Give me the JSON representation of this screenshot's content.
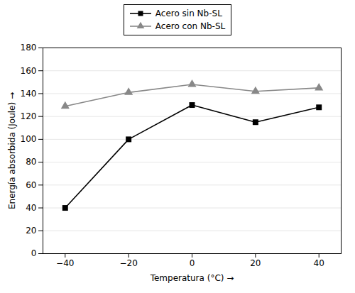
{
  "chart_data": {
    "type": "line",
    "xlabel": "Temperatura (°C)",
    "ylabel": "Energía absorbida (Joule)",
    "x": [
      -40,
      -20,
      0,
      20,
      40
    ],
    "series": [
      {
        "name": "Acero sin Nb-SL",
        "color": "#000000",
        "marker": "square",
        "values": [
          40,
          100,
          130,
          115,
          128
        ]
      },
      {
        "name": "Acero con Nb-SL",
        "color": "#888888",
        "marker": "triangle",
        "values": [
          129,
          141,
          148,
          142,
          145
        ]
      }
    ],
    "xlim": [
      -47,
      47
    ],
    "xticks": [
      -40,
      -20,
      0,
      20,
      40
    ],
    "ylim": [
      0,
      180
    ],
    "yticks": [
      0,
      20,
      40,
      60,
      80,
      100,
      120,
      140,
      160,
      180
    ],
    "grid": true,
    "legend": "top"
  }
}
